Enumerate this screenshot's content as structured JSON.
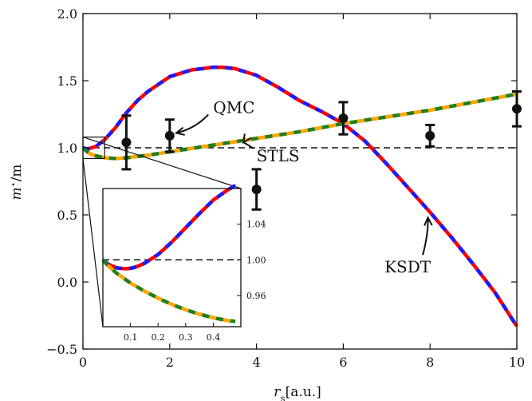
{
  "chart_data": {
    "type": "line",
    "xlabel": "r_s[a.u.]",
    "xlabel_main": "r",
    "xlabel_sub": "s",
    "xlabel_unit": "[a.u.]",
    "ylabel": "m*/m",
    "ylabel_m1": "m",
    "ylabel_star": "⋆",
    "ylabel_rest": "/m",
    "xlim": [
      0,
      10
    ],
    "ylim": [
      -0.5,
      2.0
    ],
    "x_ticks": [
      0,
      2,
      4,
      6,
      8,
      10
    ],
    "x_tick_labels": [
      "0",
      "2",
      "4",
      "6",
      "8",
      "10"
    ],
    "y_ticks": [
      -0.5,
      0.0,
      0.5,
      1.0,
      1.5,
      2.0
    ],
    "y_tick_labels": [
      "−0.5",
      "0.0",
      "0.5",
      "1.0",
      "1.5",
      "2.0"
    ],
    "reference_line": 1.0,
    "series": [
      {
        "name": "KSDT",
        "colors": [
          "#ff0000",
          "#1a1aff"
        ],
        "x": [
          0,
          0.1,
          0.2,
          0.3,
          0.5,
          0.75,
          1,
          1.25,
          1.5,
          2,
          2.5,
          3,
          3.2,
          3.5,
          4,
          4.5,
          5,
          5.5,
          6,
          6.5,
          7,
          7.5,
          8,
          8.5,
          9,
          9.5,
          10
        ],
        "y": [
          1.0,
          0.99,
          1.0,
          1.01,
          1.06,
          1.15,
          1.26,
          1.35,
          1.42,
          1.53,
          1.58,
          1.6,
          1.6,
          1.59,
          1.54,
          1.45,
          1.35,
          1.27,
          1.18,
          1.05,
          0.88,
          0.7,
          0.52,
          0.33,
          0.13,
          -0.08,
          -0.33
        ]
      },
      {
        "name": "STLS",
        "colors": [
          "#ffa500",
          "#1f7f1f"
        ],
        "x": [
          0,
          0.1,
          0.2,
          0.3,
          0.5,
          0.75,
          1,
          1.25,
          1.5,
          2,
          3,
          4,
          5,
          6,
          7,
          8,
          9,
          10
        ],
        "y": [
          1.0,
          0.97,
          0.95,
          0.94,
          0.925,
          0.92,
          0.925,
          0.935,
          0.945,
          0.97,
          1.02,
          1.07,
          1.12,
          1.18,
          1.23,
          1.28,
          1.34,
          1.4
        ]
      }
    ],
    "qmc": {
      "name": "QMC",
      "points": [
        {
          "x": 1,
          "y": 1.04,
          "err": 0.2
        },
        {
          "x": 2,
          "y": 1.09,
          "err": 0.12
        },
        {
          "x": 4,
          "y": 0.69,
          "err": 0.15
        },
        {
          "x": 6,
          "y": 1.22,
          "err": 0.12
        },
        {
          "x": 8,
          "y": 1.09,
          "err": 0.08
        },
        {
          "x": 10,
          "y": 1.29,
          "err": 0.13
        }
      ]
    },
    "annotations": [
      {
        "text": "QMC",
        "x": 3.0,
        "y": 1.26,
        "arrow_to": [
          2.15,
          1.11
        ]
      },
      {
        "text": "STLS",
        "x": 4.0,
        "y": 0.9,
        "arrow_to": [
          3.7,
          1.04
        ]
      },
      {
        "text": "KSDT",
        "x": 6.95,
        "y": 0.07,
        "arrow_to": [
          7.95,
          0.48
        ]
      }
    ],
    "inset": {
      "xlim": [
        0,
        0.5
      ],
      "ylim": [
        0.925,
        1.08
      ],
      "x_ticks": [
        0.1,
        0.2,
        0.3,
        0.4
      ],
      "x_tick_labels": [
        "0.1",
        "0.2",
        "0.3",
        "0.4"
      ],
      "y_ticks": [
        0.96,
        1.0,
        1.04
      ],
      "y_tick_labels": [
        "0.96",
        "1.00",
        "1.04"
      ],
      "zoom_box": {
        "x": [
          0,
          0.5
        ],
        "y": [
          0.92,
          1.08
        ]
      },
      "ksdt": {
        "x": [
          0,
          0.02,
          0.05,
          0.08,
          0.1,
          0.12,
          0.15,
          0.2,
          0.25,
          0.3,
          0.35,
          0.4,
          0.45,
          0.48
        ],
        "y": [
          1.0,
          0.995,
          0.991,
          0.99,
          0.9905,
          0.992,
          0.996,
          1.006,
          1.02,
          1.036,
          1.052,
          1.067,
          1.078,
          1.0835
        ]
      },
      "stls": {
        "x": [
          0,
          0.02,
          0.05,
          0.1,
          0.15,
          0.2,
          0.25,
          0.3,
          0.35,
          0.4,
          0.45,
          0.48
        ],
        "y": [
          1.0,
          0.993,
          0.985,
          0.974,
          0.965,
          0.957,
          0.95,
          0.944,
          0.939,
          0.935,
          0.932,
          0.931
        ]
      }
    }
  }
}
